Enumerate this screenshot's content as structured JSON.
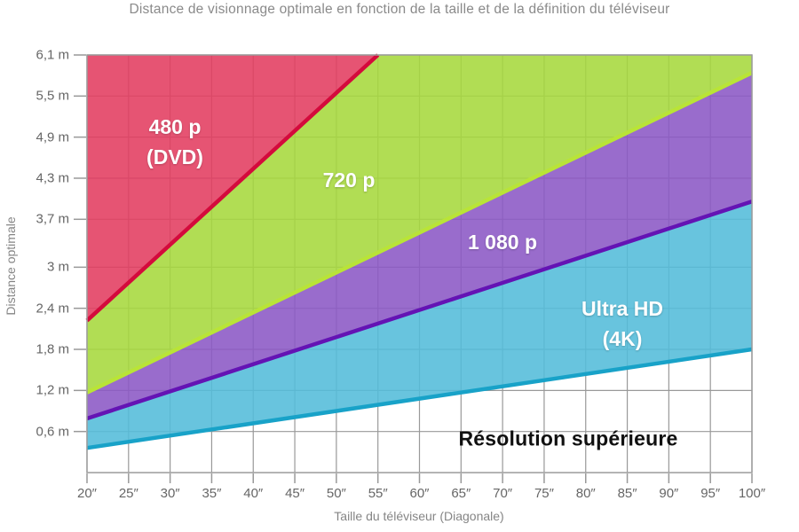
{
  "chart_data": {
    "type": "area",
    "title": "Distance de visionnage optimale en fonction de la taille et de la définition du téléviseur",
    "xlabel": "Taille du téléviseur (Diagonale)",
    "ylabel": "Distance optimale",
    "xlim": [
      20,
      100
    ],
    "ylim": [
      0,
      6.1
    ],
    "grid": true,
    "x_axis": {
      "unit": "inches",
      "values": [
        20,
        25,
        30,
        35,
        40,
        45,
        50,
        55,
        60,
        65,
        70,
        75,
        80,
        85,
        90,
        95,
        100
      ],
      "tick_labels": [
        "20″",
        "25″",
        "30″",
        "35″",
        "40″",
        "45″",
        "50″",
        "55″",
        "60″",
        "65″",
        "70″",
        "75″",
        "80″",
        "85″",
        "90″",
        "95″",
        "100″"
      ]
    },
    "y_axis": {
      "unit": "m",
      "values": [
        0.6,
        1.2,
        1.8,
        2.4,
        3,
        3.7,
        4.3,
        4.9,
        5.5,
        6.1
      ],
      "tick_labels": [
        "0,6 m",
        "1,2 m",
        "1,8 m",
        "2,4 m",
        "3 m",
        "3,7 m",
        "4,3 m",
        "4,9 m",
        "5,5 m",
        "6,1 m"
      ]
    },
    "series": [
      {
        "id": "480p",
        "name": "480 p (DVD)",
        "label_lines": [
          "480 p",
          "(DVD)"
        ],
        "fill_color": "#e23c60",
        "line_color": "#d40a3c",
        "points": [
          [
            20,
            2.22
          ],
          [
            55,
            6.1
          ]
        ]
      },
      {
        "id": "720p",
        "name": "720 p",
        "label_lines": [
          "720 p"
        ],
        "fill_color": "#a6d83c",
        "line_color": "#b9e437",
        "points": [
          [
            20,
            1.17
          ],
          [
            100,
            5.84
          ]
        ]
      },
      {
        "id": "1080p",
        "name": "1 080 p",
        "label_lines": [
          "1 080 p"
        ],
        "fill_color": "#8b58c5",
        "line_color": "#6413b4",
        "points": [
          [
            20,
            0.79
          ],
          [
            100,
            3.96
          ]
        ]
      },
      {
        "id": "uhd",
        "name": "Ultra HD (4K)",
        "label_lines": [
          "Ultra HD",
          "(4K)"
        ],
        "fill_color": "#53bcd9",
        "line_color": "#18a2c8",
        "points": [
          [
            20,
            0.36
          ],
          [
            100,
            1.8
          ]
        ]
      }
    ],
    "baseline_label": "Résolution supérieure",
    "colors": {
      "grid": "#999999",
      "border": "#9b9b9b",
      "title_text": "#8a8a8a",
      "tick_text": "#666666",
      "region_label_text": "#ffffff",
      "baseline_label_text": "#101010"
    }
  }
}
